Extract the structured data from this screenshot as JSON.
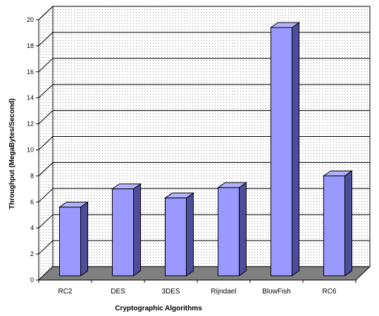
{
  "chart_data": {
    "type": "bar",
    "categories": [
      "RC2",
      "DES",
      "3DES",
      "Rijndael",
      "BlowFish",
      "RC6"
    ],
    "values": [
      4.9,
      6.3,
      5.6,
      6.4,
      18.7,
      7.3
    ],
    "xlabel": "Cryptographic Algorithms",
    "ylabel": "Throughput (MegaBytes/Second)",
    "ylim": [
      0,
      20
    ],
    "yticks": [
      "0",
      "2",
      "4",
      "6",
      "8",
      "10",
      "12",
      "14",
      "16",
      "18",
      "20"
    ],
    "grid": true,
    "style": "3d-column",
    "colors": {
      "bar_front": "#9999ff",
      "bar_top": "#b3b3ff",
      "bar_side": "#4d4d99",
      "floor": "#808080",
      "wall_dots": "#8c8c8c"
    }
  }
}
